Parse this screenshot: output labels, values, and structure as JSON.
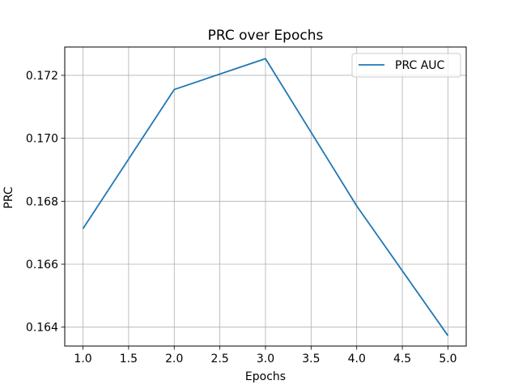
{
  "chart_data": {
    "type": "line",
    "title": "PRC over Epochs",
    "xlabel": "Epochs",
    "ylabel": "PRC",
    "x": [
      1.0,
      2.0,
      3.0,
      4.0,
      5.0
    ],
    "series": [
      {
        "name": "PRC AUC",
        "values": [
          0.16713,
          0.17155,
          0.17253,
          0.16785,
          0.16373
        ],
        "color": "#1f77b4"
      }
    ],
    "xlim": [
      0.8,
      5.2
    ],
    "ylim": [
      0.1634,
      0.1729
    ],
    "xticks": [
      1.0,
      1.5,
      2.0,
      2.5,
      3.0,
      3.5,
      4.0,
      4.5,
      5.0
    ],
    "xtick_labels": [
      "1.0",
      "1.5",
      "2.0",
      "2.5",
      "3.0",
      "3.5",
      "4.0",
      "4.5",
      "5.0"
    ],
    "yticks": [
      0.164,
      0.166,
      0.168,
      0.17,
      0.172
    ],
    "ytick_labels": [
      "0.164",
      "0.166",
      "0.168",
      "0.170",
      "0.172"
    ],
    "grid": true,
    "legend_position": "top-right"
  }
}
